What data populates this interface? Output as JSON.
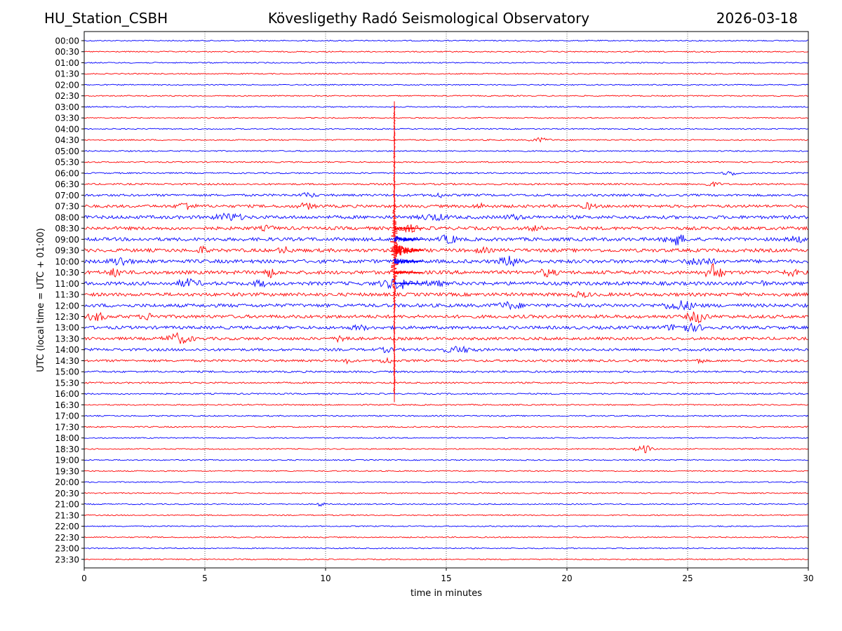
{
  "header": {
    "station": "HU_Station_CSBH",
    "title": "Kövesligethy Radó Seismological Observatory",
    "date": "2026-03-18"
  },
  "chart_data": {
    "type": "line",
    "title": "Kövesligethy Radó Seismological Observatory",
    "xlabel": "time in minutes",
    "ylabel": "UTC (local time = UTC + 01:00)",
    "xlim": [
      0,
      30
    ],
    "xticks": [
      0,
      5,
      10,
      15,
      20,
      25,
      30
    ],
    "vertical_gridlines_at": [
      5,
      10,
      15,
      20,
      25
    ],
    "series_colors": [
      "#0000ff",
      "#ff0000"
    ],
    "rows": [
      "00:00",
      "00:30",
      "01:00",
      "01:30",
      "02:00",
      "02:30",
      "03:00",
      "03:30",
      "04:00",
      "04:30",
      "05:00",
      "05:30",
      "06:00",
      "06:30",
      "07:00",
      "07:30",
      "08:00",
      "08:30",
      "09:00",
      "09:30",
      "10:00",
      "10:30",
      "11:00",
      "11:30",
      "12:00",
      "12:30",
      "13:00",
      "13:30",
      "14:00",
      "14:30",
      "15:00",
      "15:30",
      "16:00",
      "16:30",
      "17:00",
      "17:30",
      "18:00",
      "18:30",
      "19:00",
      "19:30",
      "20:00",
      "20:30",
      "21:00",
      "21:30",
      "22:00",
      "22:30",
      "23:00",
      "23:30"
    ],
    "noise_level": [
      0.8,
      0.8,
      0.8,
      0.8,
      0.8,
      0.8,
      0.8,
      0.8,
      0.8,
      0.9,
      0.9,
      0.9,
      1.0,
      1.2,
      1.6,
      2.0,
      2.3,
      2.3,
      2.4,
      2.4,
      2.5,
      2.5,
      2.5,
      2.4,
      2.4,
      2.3,
      2.2,
      2.0,
      1.8,
      1.6,
      1.3,
      1.1,
      1.0,
      0.9,
      0.9,
      0.9,
      0.8,
      0.8,
      0.8,
      0.8,
      0.8,
      0.8,
      0.8,
      0.8,
      0.8,
      0.8,
      0.8,
      0.8
    ],
    "events": [
      {
        "row": 9,
        "minute": 18.9,
        "amp": 3,
        "dur": 0.6
      },
      {
        "row": 12,
        "minute": 26.8,
        "amp": 3,
        "dur": 0.5
      },
      {
        "row": 13,
        "minute": 26.0,
        "amp": 3,
        "dur": 0.5
      },
      {
        "row": 14,
        "minute": 9.3,
        "amp": 3,
        "dur": 0.5
      },
      {
        "row": 14,
        "minute": 14.7,
        "amp": 3,
        "dur": 0.4
      },
      {
        "row": 15,
        "minute": 4.2,
        "amp": 6,
        "dur": 0.5
      },
      {
        "row": 15,
        "minute": 9.2,
        "amp": 4,
        "dur": 0.5
      },
      {
        "row": 15,
        "minute": 16.4,
        "amp": 3,
        "dur": 0.4
      },
      {
        "row": 15,
        "minute": 20.9,
        "amp": 4,
        "dur": 0.4
      },
      {
        "row": 16,
        "minute": 6.0,
        "amp": 5,
        "dur": 0.8
      },
      {
        "row": 16,
        "minute": 14.5,
        "amp": 4,
        "dur": 0.8
      },
      {
        "row": 16,
        "minute": 17.8,
        "amp": 3,
        "dur": 0.5
      },
      {
        "row": 17,
        "minute": 7.6,
        "amp": 3,
        "dur": 0.4
      },
      {
        "row": 17,
        "minute": 13.5,
        "amp": 4,
        "dur": 0.6
      },
      {
        "row": 17,
        "minute": 18.7,
        "amp": 3,
        "dur": 0.4
      },
      {
        "row": 18,
        "minute": 15.1,
        "amp": 6,
        "dur": 0.5
      },
      {
        "row": 18,
        "minute": 24.5,
        "amp": 8,
        "dur": 0.6
      },
      {
        "row": 18,
        "minute": 29.5,
        "amp": 4,
        "dur": 0.5
      },
      {
        "row": 19,
        "minute": 4.9,
        "amp": 5,
        "dur": 0.3
      },
      {
        "row": 19,
        "minute": 8.3,
        "amp": 4,
        "dur": 0.4
      },
      {
        "row": 19,
        "minute": 16.5,
        "amp": 3,
        "dur": 0.4
      },
      {
        "row": 20,
        "minute": 1.5,
        "amp": 6,
        "dur": 0.6
      },
      {
        "row": 20,
        "minute": 17.7,
        "amp": 7,
        "dur": 0.7
      },
      {
        "row": 20,
        "minute": 25.5,
        "amp": 5,
        "dur": 0.8
      },
      {
        "row": 21,
        "minute": 1.3,
        "amp": 5,
        "dur": 0.5
      },
      {
        "row": 21,
        "minute": 7.7,
        "amp": 6,
        "dur": 0.4
      },
      {
        "row": 21,
        "minute": 19.2,
        "amp": 5,
        "dur": 0.5
      },
      {
        "row": 21,
        "minute": 26.1,
        "amp": 12,
        "dur": 0.5
      },
      {
        "row": 21,
        "minute": 29.3,
        "amp": 4,
        "dur": 0.4
      },
      {
        "row": 22,
        "minute": 4.3,
        "amp": 5,
        "dur": 0.7
      },
      {
        "row": 22,
        "minute": 7.3,
        "amp": 4,
        "dur": 0.4
      },
      {
        "row": 22,
        "minute": 13.0,
        "amp": 7,
        "dur": 1.0
      },
      {
        "row": 22,
        "minute": 14.5,
        "amp": 4,
        "dur": 0.5
      },
      {
        "row": 22,
        "minute": 28.0,
        "amp": 4,
        "dur": 0.3
      },
      {
        "row": 23,
        "minute": 20.6,
        "amp": 3,
        "dur": 0.5
      },
      {
        "row": 24,
        "minute": 17.6,
        "amp": 4,
        "dur": 0.8
      },
      {
        "row": 24,
        "minute": 24.7,
        "amp": 6,
        "dur": 1.0
      },
      {
        "row": 25,
        "minute": 0.5,
        "amp": 6,
        "dur": 0.5
      },
      {
        "row": 25,
        "minute": 2.7,
        "amp": 4,
        "dur": 0.5
      },
      {
        "row": 25,
        "minute": 25.4,
        "amp": 8,
        "dur": 0.6
      },
      {
        "row": 26,
        "minute": 11.4,
        "amp": 3,
        "dur": 0.5
      },
      {
        "row": 26,
        "minute": 24.9,
        "amp": 5,
        "dur": 1.2
      },
      {
        "row": 27,
        "minute": 3.9,
        "amp": 7,
        "dur": 0.8
      },
      {
        "row": 27,
        "minute": 10.7,
        "amp": 6,
        "dur": 0.4
      },
      {
        "row": 28,
        "minute": 12.5,
        "amp": 3,
        "dur": 0.4
      },
      {
        "row": 28,
        "minute": 15.5,
        "amp": 4,
        "dur": 1.0
      },
      {
        "row": 29,
        "minute": 10.9,
        "amp": 3,
        "dur": 0.3
      },
      {
        "row": 29,
        "minute": 12.5,
        "amp": 5,
        "dur": 0.3
      },
      {
        "row": 29,
        "minute": 25.5,
        "amp": 3,
        "dur": 0.3
      },
      {
        "row": 37,
        "minute": 23.2,
        "amp": 6,
        "dur": 0.5
      },
      {
        "row": 42,
        "minute": 9.8,
        "amp": 4,
        "dur": 0.2
      }
    ],
    "quake": {
      "minute": 12.85,
      "start_row": 6,
      "end_row": 32,
      "peak_row": 19,
      "peak_amp": 70,
      "coda_minutes": 1.2
    }
  }
}
